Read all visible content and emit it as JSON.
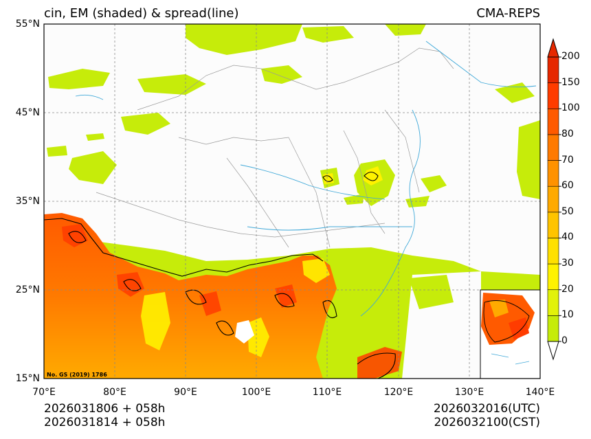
{
  "title": {
    "left": "cin, EM (shaded) & spread(line)",
    "right": "CMA-REPS"
  },
  "map": {
    "lat_labels": [
      "55°N",
      "45°N",
      "35°N",
      "25°N",
      "15°N"
    ],
    "lon_labels": [
      "70°E",
      "80°E",
      "90°E",
      "100°E",
      "110°E",
      "120°E",
      "130°E",
      "140°E"
    ],
    "lat_range": [
      15,
      55
    ],
    "lon_range": [
      70,
      140
    ],
    "map_note": "No. GS (2019) 1786"
  },
  "colorbar": {
    "levels": [
      "0",
      "10",
      "20",
      "30",
      "40",
      "50",
      "60",
      "70",
      "80",
      "100",
      "150",
      "200"
    ],
    "colors": [
      "#c6ec0a",
      "#e2f20a",
      "#fff200",
      "#ffe000",
      "#ffc400",
      "#ffaa00",
      "#ff9200",
      "#ff7a00",
      "#ff5a00",
      "#ff3c00",
      "#e62800"
    ],
    "extend_low_color": "#ffffff",
    "extend_high_color": "#e62800"
  },
  "footer": {
    "init_line1": "2026031806  +  058h",
    "init_line2": "2026031814  +  058h",
    "valid_utc": "2026032016(UTC)",
    "valid_cst": "2026032100(CST)"
  }
}
